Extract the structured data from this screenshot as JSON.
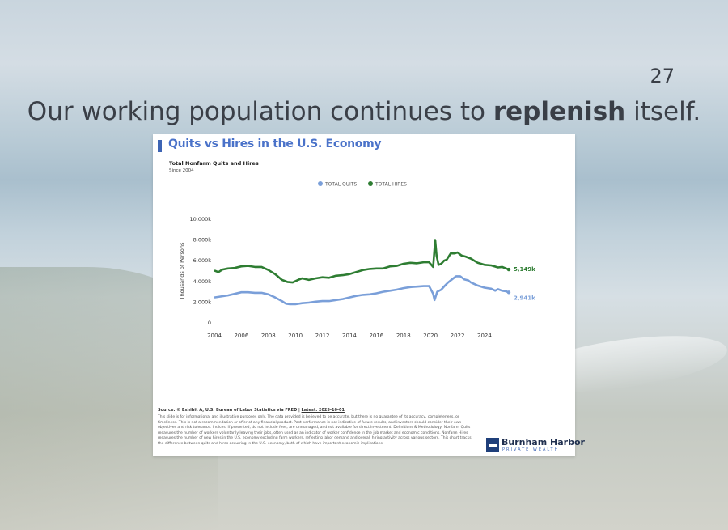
{
  "slide": {
    "number": "27",
    "headline_pre": "Our working population continues to ",
    "headline_bold": "replenish",
    "headline_post": " itself."
  },
  "card": {
    "source_label": "Source: © Exhibit A, U.S. Bureau of Labor Statistics via FRED | ",
    "source_link": "Latest: 2025-10-01",
    "disclaimer": "This slide is for informational and illustrative purposes only. The data provided is believed to be accurate, but there is no guarantee of its accuracy, completeness, or timeliness. This is not a recommendation or offer of any financial product. Past performance is not indicative of future results, and investors should consider their own objectives and risk tolerance. Indices, if presented, do not include fees, are unmanaged, and not available for direct investment. Definitions & Methodology: Nonfarm Quits measures the number of workers voluntarily leaving their jobs, often used as an indicator of worker confidence in the job market and economic conditions. Nonfarm Hires measures the number of new hires in the U.S. economy excluding farm workers, reflecting labor demand and overall hiring activity across various sectors. This chart tracks the difference between quits and hires occurring in the U.S. economy, both of which have important economic implications.",
    "logo_name": "Burnham Harbor",
    "logo_tagline": "PRIVATE WEALTH"
  },
  "chart_data": {
    "type": "line",
    "title": "Quits vs Hires in the U.S. Economy",
    "subtitle": "Total Nonfarm Quits and Hires",
    "note": "Since 2004",
    "xlabel": "",
    "ylabel": "Thousands of Persons",
    "xlim": [
      2004,
      2025.8
    ],
    "ylim": [
      0,
      10000
    ],
    "x_ticks": [
      "2004",
      "2006",
      "2008",
      "2010",
      "2012",
      "2014",
      "2016",
      "2018",
      "2020",
      "2022",
      "2024"
    ],
    "y_ticks": [
      "0",
      "2,000k",
      "4,000k",
      "6,000k",
      "8,000k",
      "10,000k"
    ],
    "legend_position": "top-center",
    "grid": false,
    "series": [
      {
        "name": "TOTAL QUITS",
        "color": "#7a9fd9",
        "end_label": "2,941k",
        "points": [
          [
            2004.0,
            2450
          ],
          [
            2004.5,
            2550
          ],
          [
            2005.0,
            2650
          ],
          [
            2005.5,
            2800
          ],
          [
            2006.0,
            2950
          ],
          [
            2006.5,
            2950
          ],
          [
            2007.0,
            2900
          ],
          [
            2007.5,
            2900
          ],
          [
            2008.0,
            2750
          ],
          [
            2008.5,
            2450
          ],
          [
            2009.0,
            2100
          ],
          [
            2009.3,
            1850
          ],
          [
            2009.6,
            1800
          ],
          [
            2010.0,
            1800
          ],
          [
            2010.5,
            1900
          ],
          [
            2011.0,
            1950
          ],
          [
            2011.5,
            2050
          ],
          [
            2012.0,
            2100
          ],
          [
            2012.5,
            2100
          ],
          [
            2013.0,
            2200
          ],
          [
            2013.5,
            2300
          ],
          [
            2014.0,
            2450
          ],
          [
            2014.5,
            2600
          ],
          [
            2015.0,
            2700
          ],
          [
            2015.5,
            2750
          ],
          [
            2016.0,
            2850
          ],
          [
            2016.5,
            3000
          ],
          [
            2017.0,
            3100
          ],
          [
            2017.5,
            3200
          ],
          [
            2018.0,
            3350
          ],
          [
            2018.5,
            3450
          ],
          [
            2019.0,
            3500
          ],
          [
            2019.5,
            3550
          ],
          [
            2019.9,
            3550
          ],
          [
            2020.2,
            2800
          ],
          [
            2020.3,
            2200
          ],
          [
            2020.5,
            3000
          ],
          [
            2020.8,
            3200
          ],
          [
            2021.0,
            3500
          ],
          [
            2021.3,
            3900
          ],
          [
            2021.6,
            4200
          ],
          [
            2021.9,
            4500
          ],
          [
            2022.2,
            4500
          ],
          [
            2022.5,
            4200
          ],
          [
            2022.8,
            4100
          ],
          [
            2023.0,
            3900
          ],
          [
            2023.5,
            3600
          ],
          [
            2024.0,
            3400
          ],
          [
            2024.5,
            3300
          ],
          [
            2024.8,
            3100
          ],
          [
            2025.0,
            3250
          ],
          [
            2025.3,
            3100
          ],
          [
            2025.6,
            3050
          ],
          [
            2025.8,
            2941
          ]
        ]
      },
      {
        "name": "TOTAL HIRES",
        "color": "#2e7d32",
        "end_label": "5,149k",
        "points": [
          [
            2004.0,
            5050
          ],
          [
            2004.3,
            4900
          ],
          [
            2004.6,
            5150
          ],
          [
            2005.0,
            5250
          ],
          [
            2005.5,
            5300
          ],
          [
            2006.0,
            5450
          ],
          [
            2006.5,
            5500
          ],
          [
            2007.0,
            5400
          ],
          [
            2007.5,
            5400
          ],
          [
            2008.0,
            5100
          ],
          [
            2008.5,
            4700
          ],
          [
            2009.0,
            4150
          ],
          [
            2009.4,
            3950
          ],
          [
            2009.8,
            3900
          ],
          [
            2010.2,
            4150
          ],
          [
            2010.5,
            4300
          ],
          [
            2011.0,
            4150
          ],
          [
            2011.5,
            4300
          ],
          [
            2012.0,
            4400
          ],
          [
            2012.5,
            4350
          ],
          [
            2013.0,
            4550
          ],
          [
            2013.5,
            4600
          ],
          [
            2014.0,
            4700
          ],
          [
            2014.5,
            4900
          ],
          [
            2015.0,
            5100
          ],
          [
            2015.5,
            5200
          ],
          [
            2016.0,
            5250
          ],
          [
            2016.5,
            5250
          ],
          [
            2017.0,
            5450
          ],
          [
            2017.5,
            5500
          ],
          [
            2018.0,
            5700
          ],
          [
            2018.5,
            5800
          ],
          [
            2019.0,
            5750
          ],
          [
            2019.5,
            5850
          ],
          [
            2019.9,
            5850
          ],
          [
            2020.2,
            5400
          ],
          [
            2020.35,
            8000
          ],
          [
            2020.45,
            6500
          ],
          [
            2020.6,
            5600
          ],
          [
            2020.8,
            5700
          ],
          [
            2021.0,
            6000
          ],
          [
            2021.2,
            6100
          ],
          [
            2021.5,
            6700
          ],
          [
            2021.8,
            6700
          ],
          [
            2022.0,
            6800
          ],
          [
            2022.3,
            6500
          ],
          [
            2022.6,
            6400
          ],
          [
            2023.0,
            6200
          ],
          [
            2023.5,
            5800
          ],
          [
            2024.0,
            5600
          ],
          [
            2024.5,
            5550
          ],
          [
            2025.0,
            5350
          ],
          [
            2025.3,
            5400
          ],
          [
            2025.6,
            5250
          ],
          [
            2025.8,
            5149
          ]
        ]
      }
    ]
  }
}
